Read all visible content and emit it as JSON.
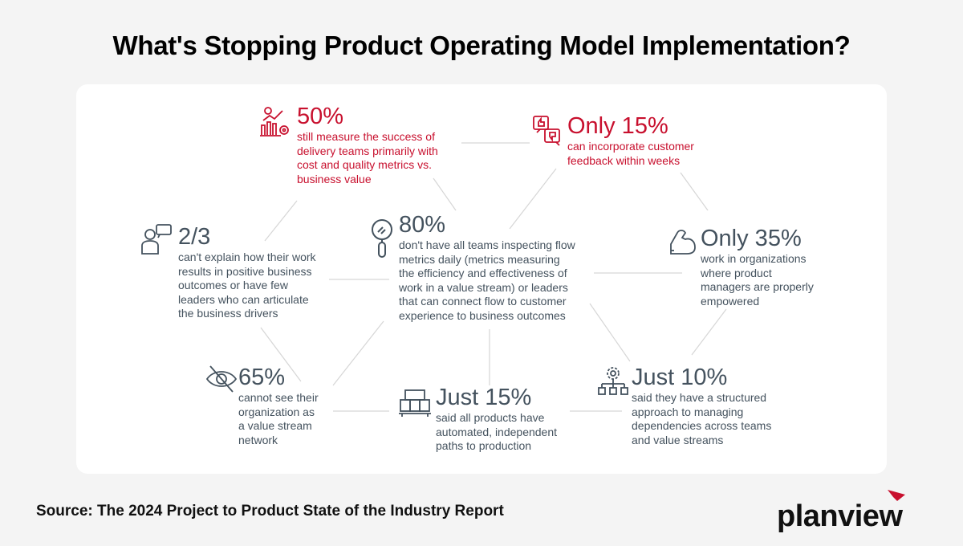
{
  "title": "What's Stopping Product Operating Model Implementation?",
  "stats": [
    {
      "value": "50%",
      "text": [
        "still measure the success of",
        "delivery teams primarily with",
        "cost and quality metrics vs.",
        "business value"
      ],
      "icon": "chart-gear-icon",
      "color": "#c8102e"
    },
    {
      "value": "Only 15%",
      "text": [
        "can incorporate customer",
        "feedback within weeks"
      ],
      "icon": "thumbs-up-down-icon",
      "color": "#c8102e"
    },
    {
      "value": "2/3",
      "text": [
        "can't explain how their work",
        "results in positive business",
        "outcomes or have few",
        "leaders who can articulate",
        "the business drivers"
      ],
      "icon": "person-speech-icon",
      "color": "#44525e"
    },
    {
      "value": "80%",
      "text": [
        "don't have all teams inspecting flow",
        "metrics daily (metrics measuring",
        "the efficiency and effectiveness of",
        "work in a value stream) or leaders",
        "that can connect flow to customer",
        "experience to business outcomes"
      ],
      "icon": "magnifier-icon",
      "color": "#44525e"
    },
    {
      "value": "Only 35%",
      "text": [
        "work in organizations",
        "where product",
        "managers are properly",
        "empowered"
      ],
      "icon": "flexed-arm-icon",
      "color": "#44525e"
    },
    {
      "value": "65%",
      "text": [
        "cannot see their",
        "organization as",
        "a value stream",
        "network"
      ],
      "icon": "eye-slash-icon",
      "color": "#44525e"
    },
    {
      "value": "Just 15%",
      "text": [
        "said all products have",
        "automated, independent",
        "paths to production"
      ],
      "icon": "pallet-boxes-icon",
      "color": "#44525e"
    },
    {
      "value": "Just 10%",
      "text": [
        "said they have a structured",
        "approach to managing",
        "dependencies across teams",
        "and value streams"
      ],
      "icon": "gear-hierarchy-icon",
      "color": "#44525e"
    }
  ],
  "source": "Source: The 2024 Project to Product State of the Industry Report",
  "logo": "planview",
  "colors": {
    "accent": "#c8102e",
    "text": "#44525e",
    "background": "#f4f4f4"
  }
}
